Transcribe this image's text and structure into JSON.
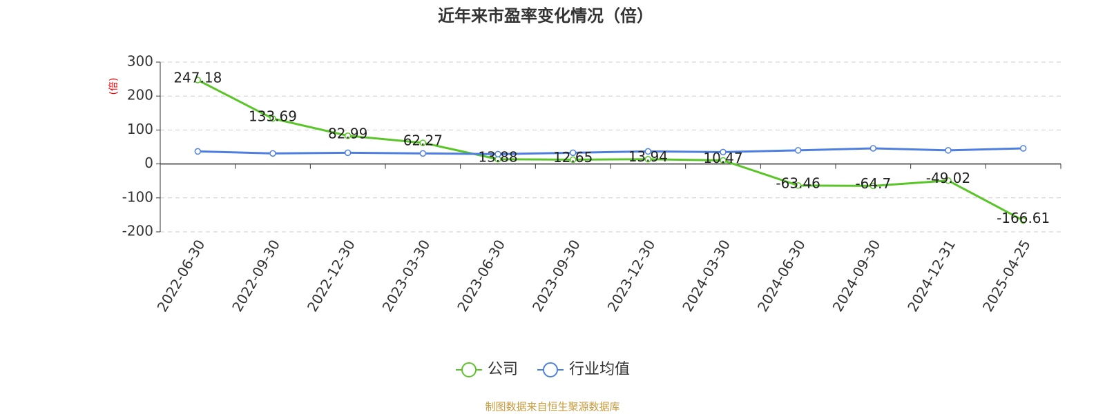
{
  "chart_data": {
    "type": "line",
    "title": "近年来市盈率变化情况（倍）",
    "y_label": "(倍)",
    "categories": [
      "2022-06-30",
      "2022-09-30",
      "2022-12-30",
      "2023-03-30",
      "2023-06-30",
      "2023-09-30",
      "2023-12-30",
      "2024-03-30",
      "2024-06-30",
      "2024-09-30",
      "2024-12-31",
      "2025-04-25"
    ],
    "series": [
      {
        "name": "公司",
        "color": "#5ac528",
        "values": [
          247.18,
          133.69,
          82.99,
          62.27,
          13.88,
          12.65,
          13.94,
          10.47,
          -63.46,
          -64.7,
          -49.02,
          -166.61
        ],
        "data_labels": true
      },
      {
        "name": "行业均值",
        "color": "#4e7fe0",
        "values": [
          37,
          31,
          33,
          31,
          29,
          33,
          37,
          35,
          40,
          46,
          40,
          46
        ],
        "data_labels": false
      }
    ],
    "ylim": [
      -200,
      300
    ],
    "yticks": [
      -200,
      -100,
      0,
      100,
      200,
      300
    ],
    "grid": true,
    "legend": "bottom",
    "source": "制图数据来自恒生聚源数据库"
  }
}
